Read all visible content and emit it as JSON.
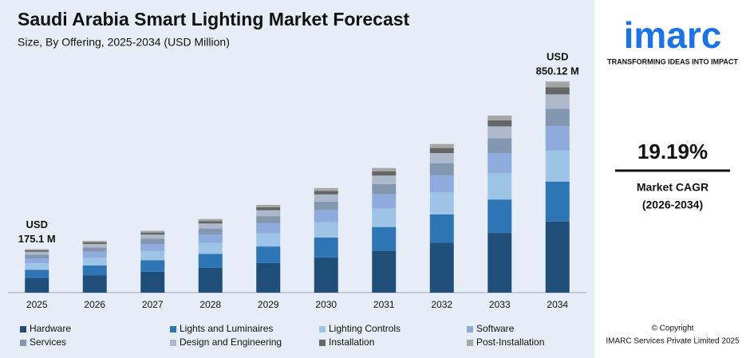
{
  "chart_data": {
    "type": "stacked_bar",
    "title": "Saudi Arabia Smart Lighting Market Forecast",
    "subtitle": "Size, By Offering, 2025-2034 (USD Million)",
    "categories": [
      "2025",
      "2026",
      "2027",
      "2028",
      "2029",
      "2030",
      "2031",
      "2032",
      "2033",
      "2034"
    ],
    "series": [
      {
        "name": "Hardware",
        "color": "#1f4e79",
        "values": [
          59.0,
          70.3,
          83.8,
          99.9,
          119.1,
          141.9,
          169.2,
          201.7,
          240.3,
          286.5
        ]
      },
      {
        "name": "Lights and Luminaires",
        "color": "#2e75b6",
        "values": [
          33.1,
          39.4,
          47.0,
          56.0,
          66.8,
          79.6,
          94.9,
          113.1,
          134.8,
          160.7
        ]
      },
      {
        "name": "Lighting Controls",
        "color": "#9dc3e6",
        "values": [
          25.9,
          30.9,
          36.8,
          43.9,
          52.3,
          62.3,
          74.3,
          88.6,
          105.6,
          125.8
        ]
      },
      {
        "name": "Software",
        "color": "#8faadc",
        "values": [
          20.0,
          23.8,
          28.4,
          33.8,
          40.3,
          48.0,
          57.2,
          68.2,
          81.3,
          96.9
        ]
      },
      {
        "name": "Services",
        "color": "#8497b0",
        "values": [
          14.5,
          17.3,
          20.7,
          24.6,
          29.3,
          35.0,
          41.7,
          49.7,
          59.2,
          70.6
        ]
      },
      {
        "name": "Design and Engineering",
        "color": "#adb9ca",
        "values": [
          11.9,
          14.2,
          16.9,
          20.2,
          24.0,
          28.6,
          34.1,
          40.7,
          48.5,
          57.8
        ]
      },
      {
        "name": "Installation",
        "color": "#666666",
        "values": [
          6.0,
          7.1,
          8.5,
          10.1,
          12.0,
          14.3,
          17.1,
          20.3,
          24.2,
          28.9
        ]
      },
      {
        "name": "Post-Installation",
        "color": "#a6a6a6",
        "values": [
          4.7,
          5.6,
          6.7,
          8.0,
          9.5,
          11.4,
          13.6,
          16.2,
          19.3,
          23.0
        ]
      }
    ],
    "ylim": [
      0,
      1050
    ],
    "annotations": [
      {
        "category": 0,
        "lines": [
          "USD",
          "175.1 M"
        ]
      },
      {
        "category": 9,
        "lines": [
          "USD",
          "850.12 M"
        ]
      }
    ]
  },
  "sidebar": {
    "logo": "imarc",
    "tagline": "TRANSFORMING IDEAS INTO IMPACT",
    "cagr": "19.19%",
    "cagr_label": "Market CAGR",
    "cagr_period": "(2026-2034)",
    "copyright": "© Copyright",
    "company": "IMARC Services Private Limited 2025"
  }
}
